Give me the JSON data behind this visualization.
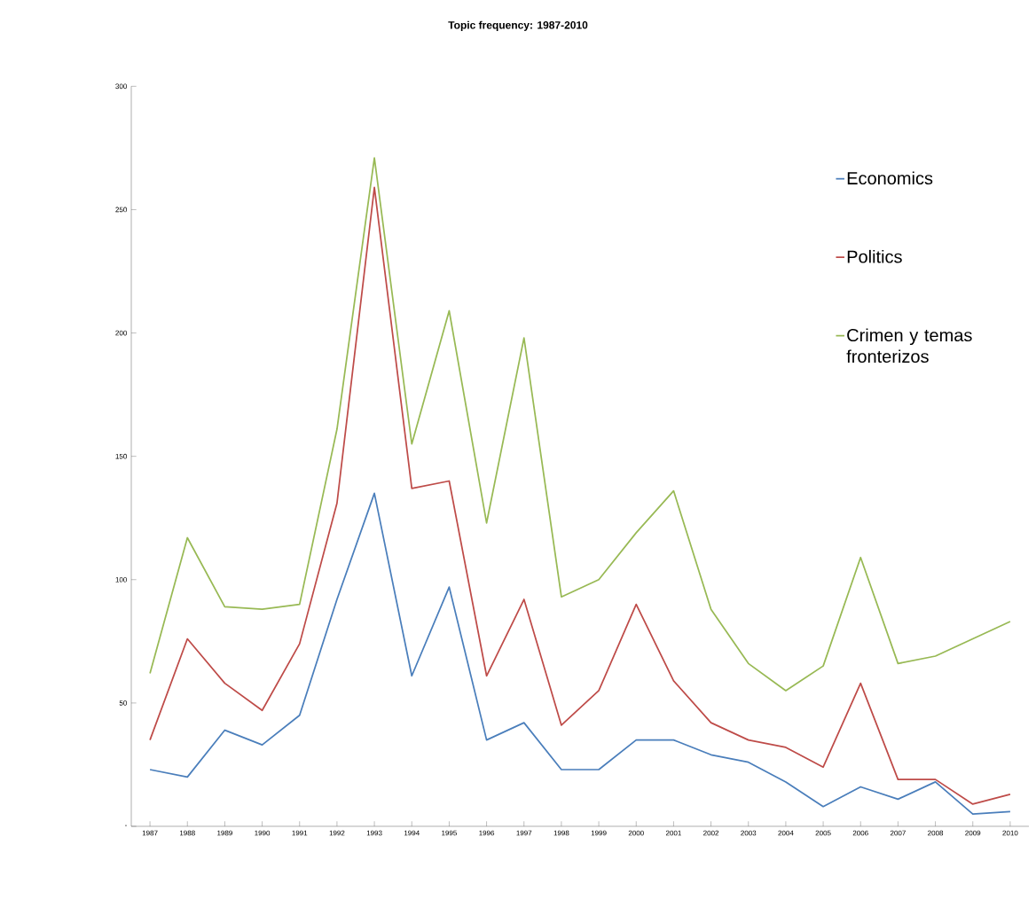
{
  "chart_data": {
    "type": "line",
    "title": "Topic frequency: 1987-2010",
    "categories": [
      "1987",
      "1988",
      "1989",
      "1990",
      "1991",
      "1992",
      "1993",
      "1994",
      "1995",
      "1996",
      "1997",
      "1998",
      "1999",
      "2000",
      "2001",
      "2002",
      "2003",
      "2004",
      "2005",
      "2006",
      "2007",
      "2008",
      "2009",
      "2010"
    ],
    "series": [
      {
        "name": "Economics",
        "color": "#4a7ebb",
        "values": [
          23,
          20,
          39,
          33,
          45,
          92,
          135,
          61,
          97,
          35,
          42,
          23,
          23,
          35,
          35,
          29,
          26,
          18,
          8,
          16,
          11,
          18,
          5,
          6
        ]
      },
      {
        "name": "Politics",
        "color": "#be4b48",
        "values": [
          35,
          76,
          58,
          47,
          74,
          131,
          259,
          137,
          140,
          61,
          92,
          41,
          55,
          90,
          59,
          42,
          35,
          32,
          24,
          58,
          19,
          19,
          9,
          13
        ]
      },
      {
        "name": "Crimen y temas fronterizos",
        "color": "#98b954",
        "values": [
          62,
          117,
          89,
          88,
          90,
          161,
          271,
          155,
          209,
          123,
          198,
          93,
          100,
          119,
          136,
          88,
          66,
          55,
          65,
          109,
          66,
          69,
          76,
          83
        ]
      }
    ],
    "ylim": [
      0,
      300
    ],
    "yticks": [
      {
        "value": 0,
        "label": "-"
      },
      50,
      100,
      150,
      200,
      250,
      300
    ],
    "grid": false,
    "legend": "right",
    "marker": "none",
    "line_style": "solid"
  }
}
